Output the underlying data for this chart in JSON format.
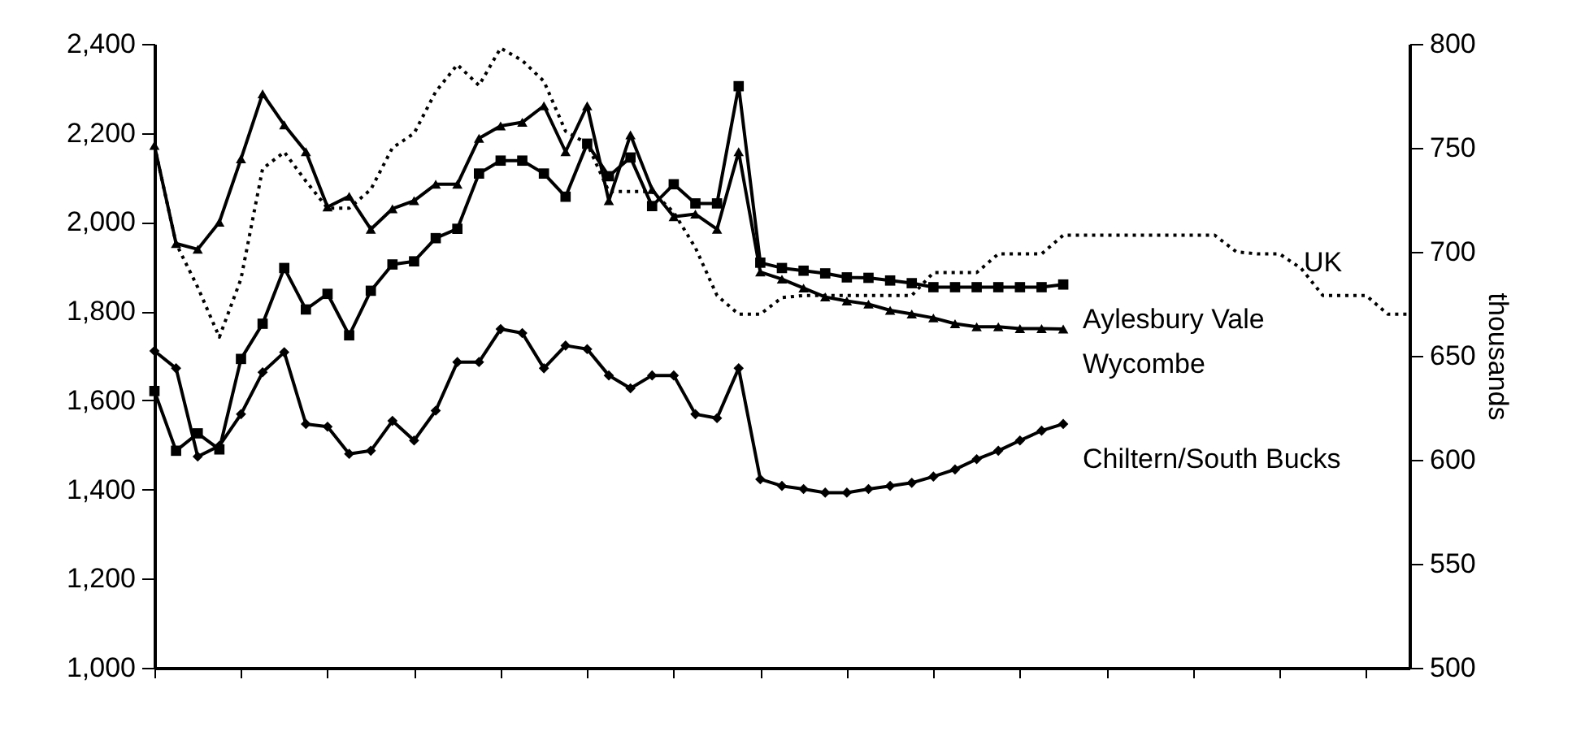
{
  "chart_data": {
    "type": "line",
    "categories": [
      null,
      null,
      null,
      null,
      null,
      null,
      null,
      null,
      null,
      null,
      null,
      null,
      null,
      null,
      null,
      null,
      null,
      null,
      null,
      null,
      null,
      null,
      null,
      null,
      null,
      null,
      null,
      null,
      null,
      null,
      null,
      null,
      null,
      null,
      null,
      null,
      null,
      null,
      null,
      null,
      null,
      null,
      null,
      null,
      null,
      null,
      null,
      null,
      null,
      null,
      null,
      null,
      null,
      null,
      null,
      null,
      null,
      null,
      null
    ],
    "series": [
      {
        "name": "UK",
        "color": "#000000",
        "axis": "y2",
        "line_style": "dotted",
        "marker": "none",
        "values": [
          751,
          704,
          683,
          659,
          687,
          740,
          748,
          734,
          721,
          721,
          730,
          750,
          757,
          777,
          790,
          780,
          798,
          792,
          782,
          758,
          752,
          729,
          729,
          729,
          719,
          702,
          679,
          670,
          670,
          678,
          679,
          679,
          679,
          679,
          679,
          679,
          690,
          690,
          690,
          699,
          699,
          699,
          708,
          708,
          708,
          708,
          708,
          708,
          708,
          708,
          700,
          699,
          699,
          692,
          679,
          679,
          679,
          670,
          670
        ]
      },
      {
        "name": "Aylesbury Vale",
        "color": "#000000",
        "line_style": "solid",
        "marker": "square",
        "values": [
          1621,
          1487,
          1526,
          1490,
          1693,
          1772,
          1897,
          1804,
          1839,
          1746,
          1846,
          1905,
          1912,
          1964,
          1985,
          2109,
          2138,
          2138,
          2109,
          2057,
          2176,
          2103,
          2145,
          2036,
          2085,
          2042,
          2042,
          2305,
          1909,
          1897,
          1891,
          1885,
          1876,
          1875,
          1869,
          1863,
          1854,
          1854,
          1854,
          1854,
          1854,
          1854,
          1860,
          null,
          null,
          null,
          null,
          null,
          null,
          null,
          null,
          null,
          null,
          null,
          null,
          null,
          null,
          null,
          null
        ]
      },
      {
        "name": "Wycombe",
        "color": "#000000",
        "line_style": "solid",
        "marker": "triangle",
        "values": [
          2172,
          1952,
          1939,
          2000,
          2142,
          2288,
          2218,
          2158,
          2034,
          2058,
          1984,
          2030,
          2048,
          2085,
          2085,
          2188,
          2216,
          2224,
          2261,
          2158,
          2261,
          2048,
          2196,
          2073,
          2012,
          2018,
          1984,
          2158,
          1888,
          1872,
          1852,
          1832,
          1823,
          1816,
          1802,
          1794,
          1785,
          1772,
          1765,
          1765,
          1761,
          1761,
          1760,
          null,
          null,
          null,
          null,
          null,
          null,
          null,
          null,
          null,
          null,
          null,
          null,
          null,
          null,
          null,
          null
        ]
      },
      {
        "name": "Chiltern/South Bucks",
        "color": "#000000",
        "line_style": "solid",
        "marker": "diamond",
        "values": [
          1711,
          1672,
          1474,
          1498,
          1569,
          1663,
          1708,
          1547,
          1541,
          1480,
          1487,
          1554,
          1510,
          1577,
          1686,
          1686,
          1760,
          1751,
          1672,
          1723,
          1715,
          1656,
          1627,
          1656,
          1656,
          1569,
          1560,
          1672,
          1423,
          1408,
          1401,
          1393,
          1393,
          1401,
          1408,
          1415,
          1429,
          1445,
          1468,
          1487,
          1510,
          1532,
          1547,
          null,
          null,
          null,
          null,
          null,
          null,
          null,
          null,
          null,
          null,
          null,
          null,
          null,
          null,
          null,
          null
        ]
      }
    ],
    "ylim": [
      1000,
      2400
    ],
    "yticks": [
      {
        "value": 1000,
        "label": "1,000"
      },
      {
        "value": 1200,
        "label": "1,200"
      },
      {
        "value": 1400,
        "label": "1,400"
      },
      {
        "value": 1600,
        "label": "1,600"
      },
      {
        "value": 1800,
        "label": "1,800"
      },
      {
        "value": 2000,
        "label": "2,000"
      },
      {
        "value": 2200,
        "label": "2,200"
      },
      {
        "value": 2400,
        "label": "2,400"
      }
    ],
    "y2lim": [
      500,
      800
    ],
    "y2ticks": [
      500,
      550,
      600,
      650,
      700,
      750,
      800
    ],
    "y2label": "thousands",
    "grid": false
  }
}
